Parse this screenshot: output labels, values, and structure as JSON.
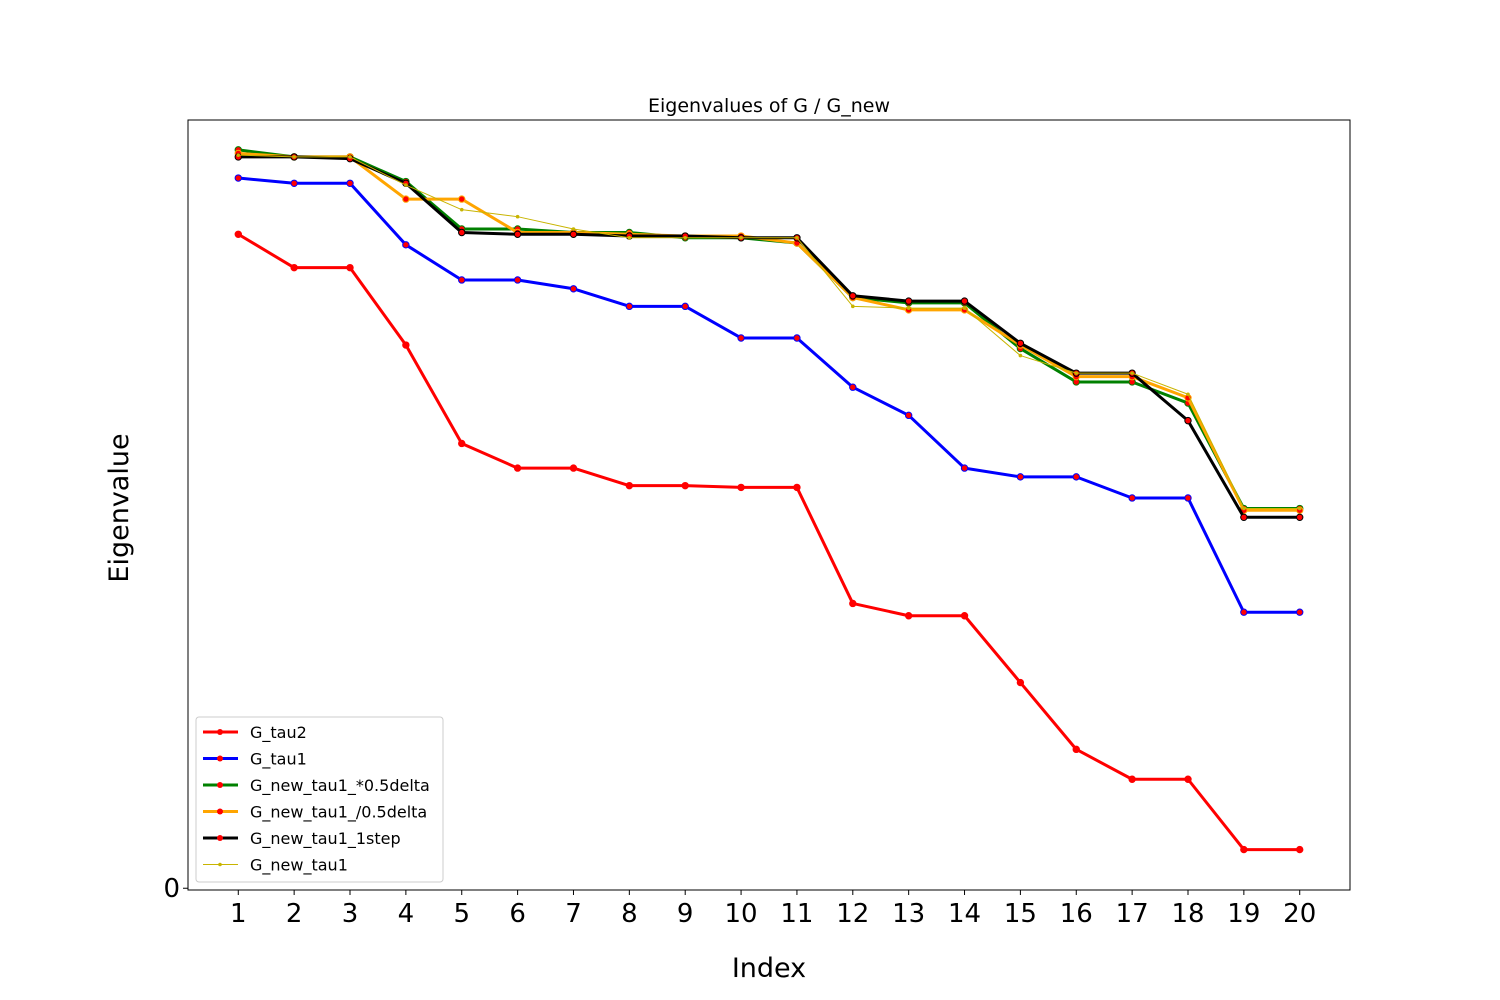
{
  "chart_data": {
    "type": "line",
    "title": "Eigenvalues of G / G_new",
    "xlabel": "Index",
    "ylabel": "Eigenvalue",
    "x": [
      1,
      2,
      3,
      4,
      5,
      6,
      7,
      8,
      9,
      10,
      11,
      12,
      13,
      14,
      15,
      16,
      17,
      18,
      19,
      20
    ],
    "x_tick_labels": [
      "1",
      "2",
      "3",
      "4",
      "5",
      "6",
      "7",
      "8",
      "9",
      "10",
      "11",
      "12",
      "13",
      "14",
      "15",
      "16",
      "17",
      "18",
      "19",
      "20"
    ],
    "y_tick_labels": [
      "0"
    ],
    "y_ticks": [
      0
    ],
    "xlim": [
      0.1,
      20.9
    ],
    "ylim": [
      -0.01,
      4.37
    ],
    "grid": false,
    "legend_position": "lower-left",
    "series": [
      {
        "name": "G_tau2",
        "color": "#ff0000",
        "marker_color": "#ff0000",
        "line_width": 3,
        "marker": "circle",
        "values": [
          3.72,
          3.53,
          3.53,
          3.09,
          2.53,
          2.39,
          2.39,
          2.29,
          2.29,
          2.28,
          2.28,
          1.62,
          1.55,
          1.55,
          1.17,
          0.79,
          0.62,
          0.62,
          0.22,
          0.22
        ]
      },
      {
        "name": "G_tau1",
        "color": "#0000ff",
        "marker_color": "#ff0000",
        "line_width": 3,
        "marker": "circle",
        "values": [
          4.04,
          4.01,
          4.01,
          3.66,
          3.46,
          3.46,
          3.41,
          3.31,
          3.31,
          3.13,
          3.13,
          2.85,
          2.69,
          2.39,
          2.34,
          2.34,
          2.22,
          2.22,
          1.57,
          1.57
        ]
      },
      {
        "name": "G_new_tau1_*0.5delta",
        "color": "#008000",
        "marker_color": "#ff0000",
        "line_width": 3,
        "marker": "circle",
        "values": [
          4.2,
          4.16,
          4.16,
          4.02,
          3.75,
          3.75,
          3.73,
          3.73,
          3.7,
          3.7,
          3.67,
          3.36,
          3.33,
          3.33,
          3.07,
          2.88,
          2.88,
          2.76,
          2.16,
          2.16
        ]
      },
      {
        "name": "G_new_tau1_/0.5delta",
        "color": "#ffa500",
        "marker_color": "#ff0000",
        "line_width": 3,
        "marker": "circle",
        "values": [
          4.18,
          4.16,
          4.16,
          3.92,
          3.92,
          3.73,
          3.73,
          3.72,
          3.71,
          3.71,
          3.67,
          3.36,
          3.29,
          3.29,
          3.09,
          2.91,
          2.91,
          2.79,
          2.15,
          2.15
        ]
      },
      {
        "name": "G_new_tau1_1step",
        "color": "#000000",
        "marker_color": "#ff0000",
        "line_width": 3,
        "marker": "circle",
        "values": [
          4.16,
          4.16,
          4.15,
          4.01,
          3.73,
          3.72,
          3.72,
          3.71,
          3.71,
          3.7,
          3.7,
          3.37,
          3.34,
          3.34,
          3.1,
          2.93,
          2.93,
          2.66,
          2.11,
          2.11
        ]
      },
      {
        "name": "G_new_tau1",
        "color": "#c8b400",
        "marker_color": "#c8b400",
        "line_width": 1,
        "marker": "dot",
        "values": [
          4.17,
          4.16,
          4.16,
          4.0,
          3.86,
          3.82,
          3.75,
          3.7,
          3.7,
          3.7,
          3.7,
          3.31,
          3.3,
          3.3,
          3.03,
          2.93,
          2.93,
          2.81,
          2.16,
          2.16
        ]
      }
    ]
  }
}
